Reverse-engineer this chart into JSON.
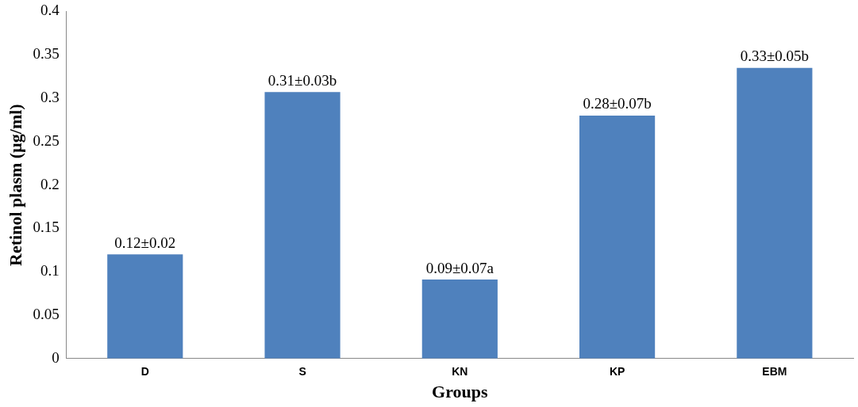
{
  "chart_data": {
    "type": "bar",
    "xlabel": "Groups",
    "ylabel": "Retinol plasm (µg/ml)",
    "categories": [
      "D",
      "S",
      "KN",
      "KP",
      "EBM"
    ],
    "values": [
      0.12,
      0.307,
      0.091,
      0.28,
      0.335
    ],
    "value_labels": [
      "0.12±0.02",
      "0.31±0.03b",
      "0.09±0.07a",
      "0.28±0.07b",
      "0.33±0.05b"
    ],
    "color": "#4f81bd",
    "ylim": [
      0,
      0.4
    ],
    "yticks": [
      0,
      0.05,
      0.1,
      0.15,
      0.2,
      0.25,
      0.3,
      0.35,
      0.4
    ],
    "grid": false
  }
}
